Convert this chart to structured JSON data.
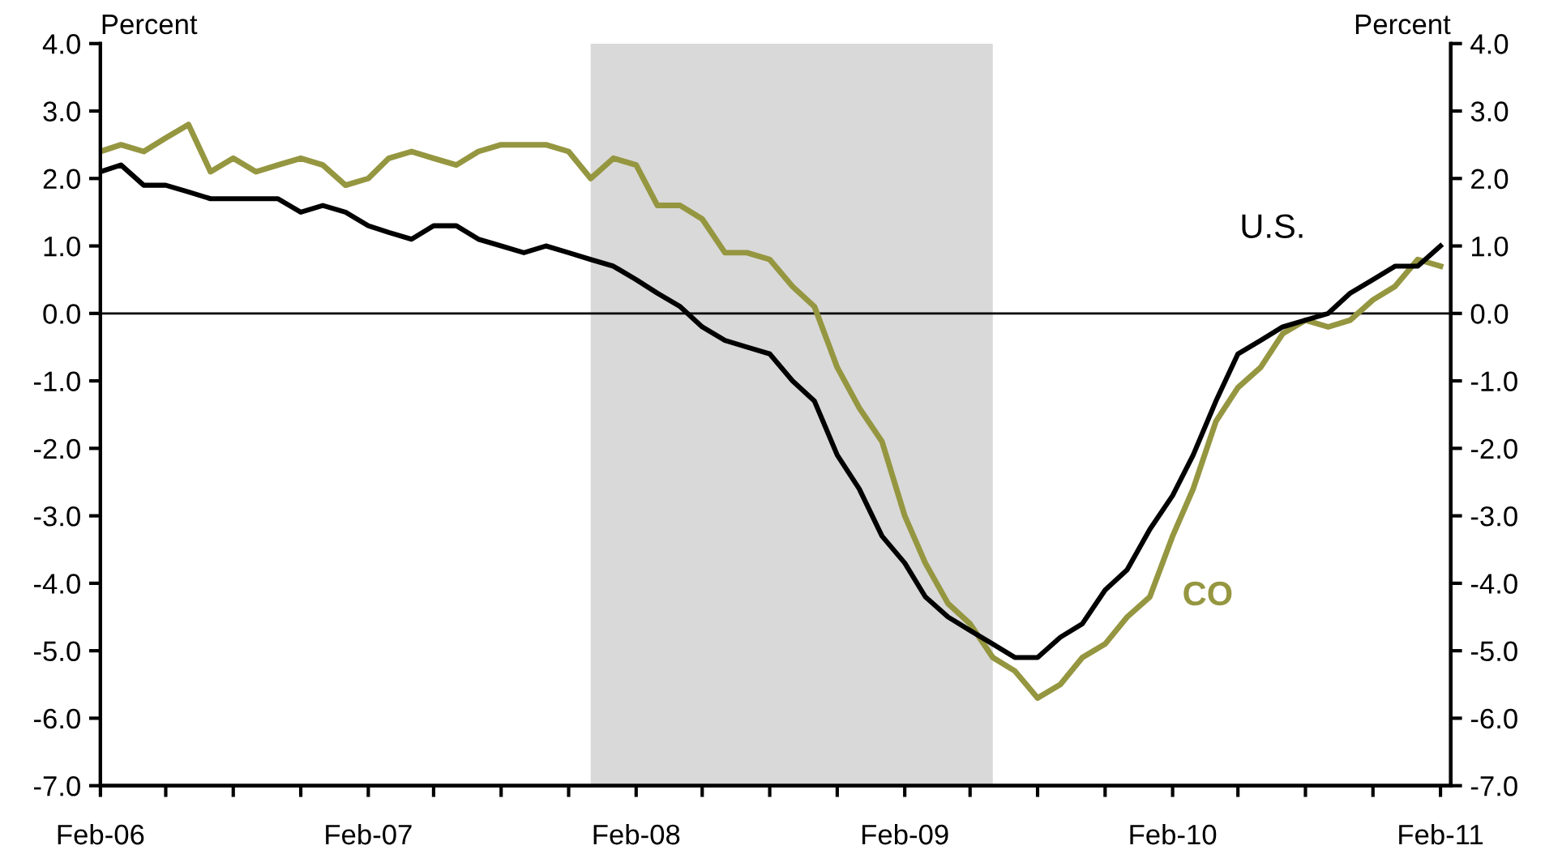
{
  "chart_data": {
    "type": "line",
    "ylabel": "Percent",
    "y2label": "Percent",
    "x": [
      "2006-02",
      "2006-03",
      "2006-04",
      "2006-05",
      "2006-06",
      "2006-07",
      "2006-08",
      "2006-09",
      "2006-10",
      "2006-11",
      "2006-12",
      "2007-01",
      "2007-02",
      "2007-03",
      "2007-04",
      "2007-05",
      "2007-06",
      "2007-07",
      "2007-08",
      "2007-09",
      "2007-10",
      "2007-11",
      "2007-12",
      "2008-01",
      "2008-02",
      "2008-03",
      "2008-04",
      "2008-05",
      "2008-06",
      "2008-07",
      "2008-08",
      "2008-09",
      "2008-10",
      "2008-11",
      "2008-12",
      "2009-01",
      "2009-02",
      "2009-03",
      "2009-04",
      "2009-05",
      "2009-06",
      "2009-07",
      "2009-08",
      "2009-09",
      "2009-10",
      "2009-11",
      "2009-12",
      "2010-01",
      "2010-02",
      "2010-03",
      "2010-04",
      "2010-05",
      "2010-06",
      "2010-07",
      "2010-08",
      "2010-09",
      "2010-10",
      "2010-11",
      "2010-12",
      "2011-01",
      "2011-02"
    ],
    "series": [
      {
        "name": "CO",
        "color": "#959640",
        "values": [
          2.4,
          2.5,
          2.4,
          2.6,
          2.8,
          2.1,
          2.3,
          2.1,
          2.2,
          2.3,
          2.2,
          1.9,
          2.0,
          2.3,
          2.4,
          2.3,
          2.2,
          2.4,
          2.5,
          2.5,
          2.5,
          2.4,
          2.0,
          2.3,
          2.2,
          1.6,
          1.6,
          1.4,
          0.9,
          0.9,
          0.8,
          0.4,
          0.1,
          -0.8,
          -1.4,
          -1.9,
          -3.0,
          -3.7,
          -4.3,
          -4.6,
          -5.1,
          -5.3,
          -5.7,
          -5.5,
          -5.1,
          -4.9,
          -4.5,
          -4.2,
          -3.3,
          -2.6,
          -1.6,
          -1.1,
          -0.8,
          -0.3,
          -0.1,
          -0.2,
          -0.1,
          0.2,
          0.4,
          0.8,
          0.7
        ]
      },
      {
        "name": "U.S.",
        "color": "#000000",
        "values": [
          2.1,
          2.2,
          1.9,
          1.9,
          1.8,
          1.7,
          1.7,
          1.7,
          1.7,
          1.5,
          1.6,
          1.5,
          1.3,
          1.2,
          1.1,
          1.3,
          1.3,
          1.1,
          1.0,
          0.9,
          1.0,
          0.9,
          0.8,
          0.7,
          0.5,
          0.3,
          0.1,
          -0.2,
          -0.4,
          -0.5,
          -0.6,
          -1.0,
          -1.3,
          -2.1,
          -2.6,
          -3.3,
          -3.7,
          -4.2,
          -4.5,
          -4.7,
          -4.9,
          -5.1,
          -5.1,
          -4.8,
          -4.6,
          -4.1,
          -3.8,
          -3.2,
          -2.7,
          -2.1,
          -1.3,
          -0.6,
          -0.4,
          -0.2,
          -0.1,
          0.0,
          0.3,
          0.5,
          0.7,
          0.7,
          1.0
        ]
      }
    ],
    "xlim": [
      "2006-02",
      "2011-02-15"
    ],
    "xticks": [
      {
        "value": "2006-02",
        "label": "Feb-06"
      },
      {
        "value": "2006-05",
        "label": null
      },
      {
        "value": "2006-08",
        "label": null
      },
      {
        "value": "2006-11",
        "label": null
      },
      {
        "value": "2007-02",
        "label": "Feb-07"
      },
      {
        "value": "2007-05",
        "label": null
      },
      {
        "value": "2007-08",
        "label": null
      },
      {
        "value": "2007-11",
        "label": null
      },
      {
        "value": "2008-02",
        "label": "Feb-08"
      },
      {
        "value": "2008-05",
        "label": null
      },
      {
        "value": "2008-08",
        "label": null
      },
      {
        "value": "2008-11",
        "label": null
      },
      {
        "value": "2009-02",
        "label": "Feb-09"
      },
      {
        "value": "2009-05",
        "label": null
      },
      {
        "value": "2009-08",
        "label": null
      },
      {
        "value": "2009-11",
        "label": null
      },
      {
        "value": "2010-02",
        "label": "Feb-10"
      },
      {
        "value": "2010-05",
        "label": null
      },
      {
        "value": "2010-08",
        "label": null
      },
      {
        "value": "2010-11",
        "label": null
      },
      {
        "value": "2011-02",
        "label": "Feb-11"
      }
    ],
    "ylim": [
      -7,
      4
    ],
    "yticks": [
      {
        "value": 4,
        "label": "4.0"
      },
      {
        "value": 3,
        "label": "3.0"
      },
      {
        "value": 2,
        "label": "2.0"
      },
      {
        "value": 1,
        "label": "1.0"
      },
      {
        "value": 0,
        "label": "0.0"
      },
      {
        "value": -1,
        "label": "-1.0"
      },
      {
        "value": -2,
        "label": "-2.0"
      },
      {
        "value": -3,
        "label": "-3.0"
      },
      {
        "value": -4,
        "label": "-4.0"
      },
      {
        "value": -5,
        "label": "-5.0"
      },
      {
        "value": -6,
        "label": "-6.0"
      },
      {
        "value": -7,
        "label": "-7.0"
      }
    ],
    "y2lim": [
      -7,
      4
    ],
    "y2ticks": [
      {
        "value": 4,
        "label": "4.0"
      },
      {
        "value": 3,
        "label": "3.0"
      },
      {
        "value": 2,
        "label": "2.0"
      },
      {
        "value": 1,
        "label": "1.0"
      },
      {
        "value": 0,
        "label": "0.0"
      },
      {
        "value": -1,
        "label": "-1.0"
      },
      {
        "value": -2,
        "label": "-2.0"
      },
      {
        "value": -3,
        "label": "-3.0"
      },
      {
        "value": -4,
        "label": "-4.0"
      },
      {
        "value": -5,
        "label": "-5.0"
      },
      {
        "value": -6,
        "label": "-6.0"
      },
      {
        "value": -7,
        "label": "-7.0"
      }
    ],
    "bands": [
      {
        "axis": "x",
        "from": "2007-12",
        "to": "2009-06",
        "color": "#d9d9d9"
      }
    ],
    "ref_lines": [
      {
        "axis": "y",
        "value": 0,
        "color": "#000000",
        "line_style": "solid"
      }
    ],
    "grid": false,
    "legend": false,
    "marker": "none",
    "line_style": "solid"
  }
}
